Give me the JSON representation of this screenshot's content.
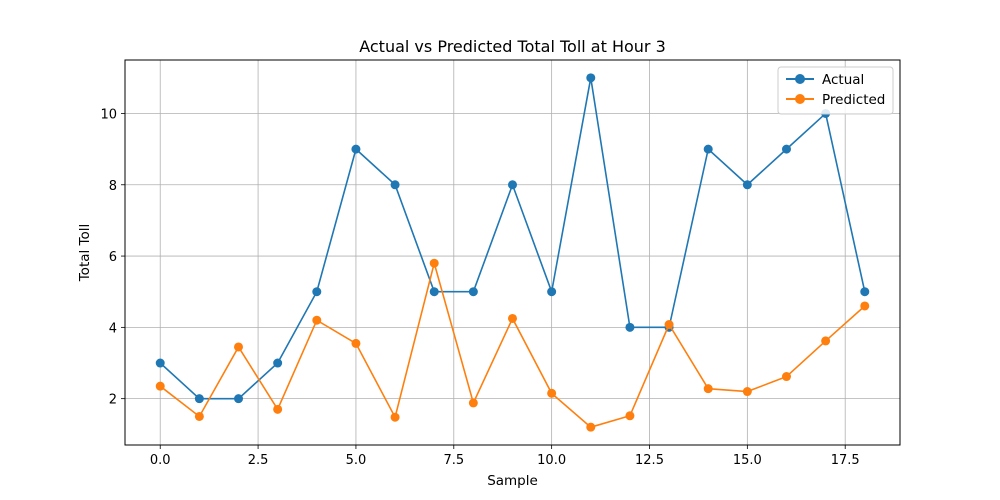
{
  "chart_data": {
    "type": "line",
    "title": "Actual vs Predicted Total Toll at Hour 3",
    "xlabel": "Sample",
    "ylabel": "Total Toll",
    "xlim": [
      -0.9,
      18.9
    ],
    "ylim": [
      0.7,
      11.5
    ],
    "x_ticks": [
      0.0,
      2.5,
      5.0,
      7.5,
      10.0,
      12.5,
      15.0,
      17.5
    ],
    "x_tick_labels": [
      "0.0",
      "2.5",
      "5.0",
      "7.5",
      "10.0",
      "12.5",
      "15.0",
      "17.5"
    ],
    "y_ticks": [
      2,
      4,
      6,
      8,
      10
    ],
    "y_tick_labels": [
      "2",
      "4",
      "6",
      "8",
      "10"
    ],
    "grid": true,
    "legend_position": "top-right",
    "x": [
      0,
      1,
      2,
      3,
      4,
      5,
      6,
      7,
      8,
      9,
      10,
      11,
      12,
      13,
      14,
      15,
      16,
      17,
      18
    ],
    "series": [
      {
        "name": "Actual",
        "color": "#1f77b4",
        "marker": "circle",
        "values": [
          3,
          2,
          2,
          3,
          5,
          9,
          8,
          5,
          5,
          8,
          5,
          11,
          4,
          4,
          9,
          8,
          9,
          10,
          5
        ]
      },
      {
        "name": "Predicted",
        "color": "#ff7f0e",
        "marker": "circle",
        "values": [
          2.35,
          1.5,
          3.45,
          1.7,
          4.2,
          3.55,
          1.48,
          5.8,
          1.88,
          4.25,
          2.15,
          1.2,
          1.52,
          4.08,
          2.28,
          2.2,
          2.62,
          3.62,
          4.6
        ]
      }
    ]
  }
}
